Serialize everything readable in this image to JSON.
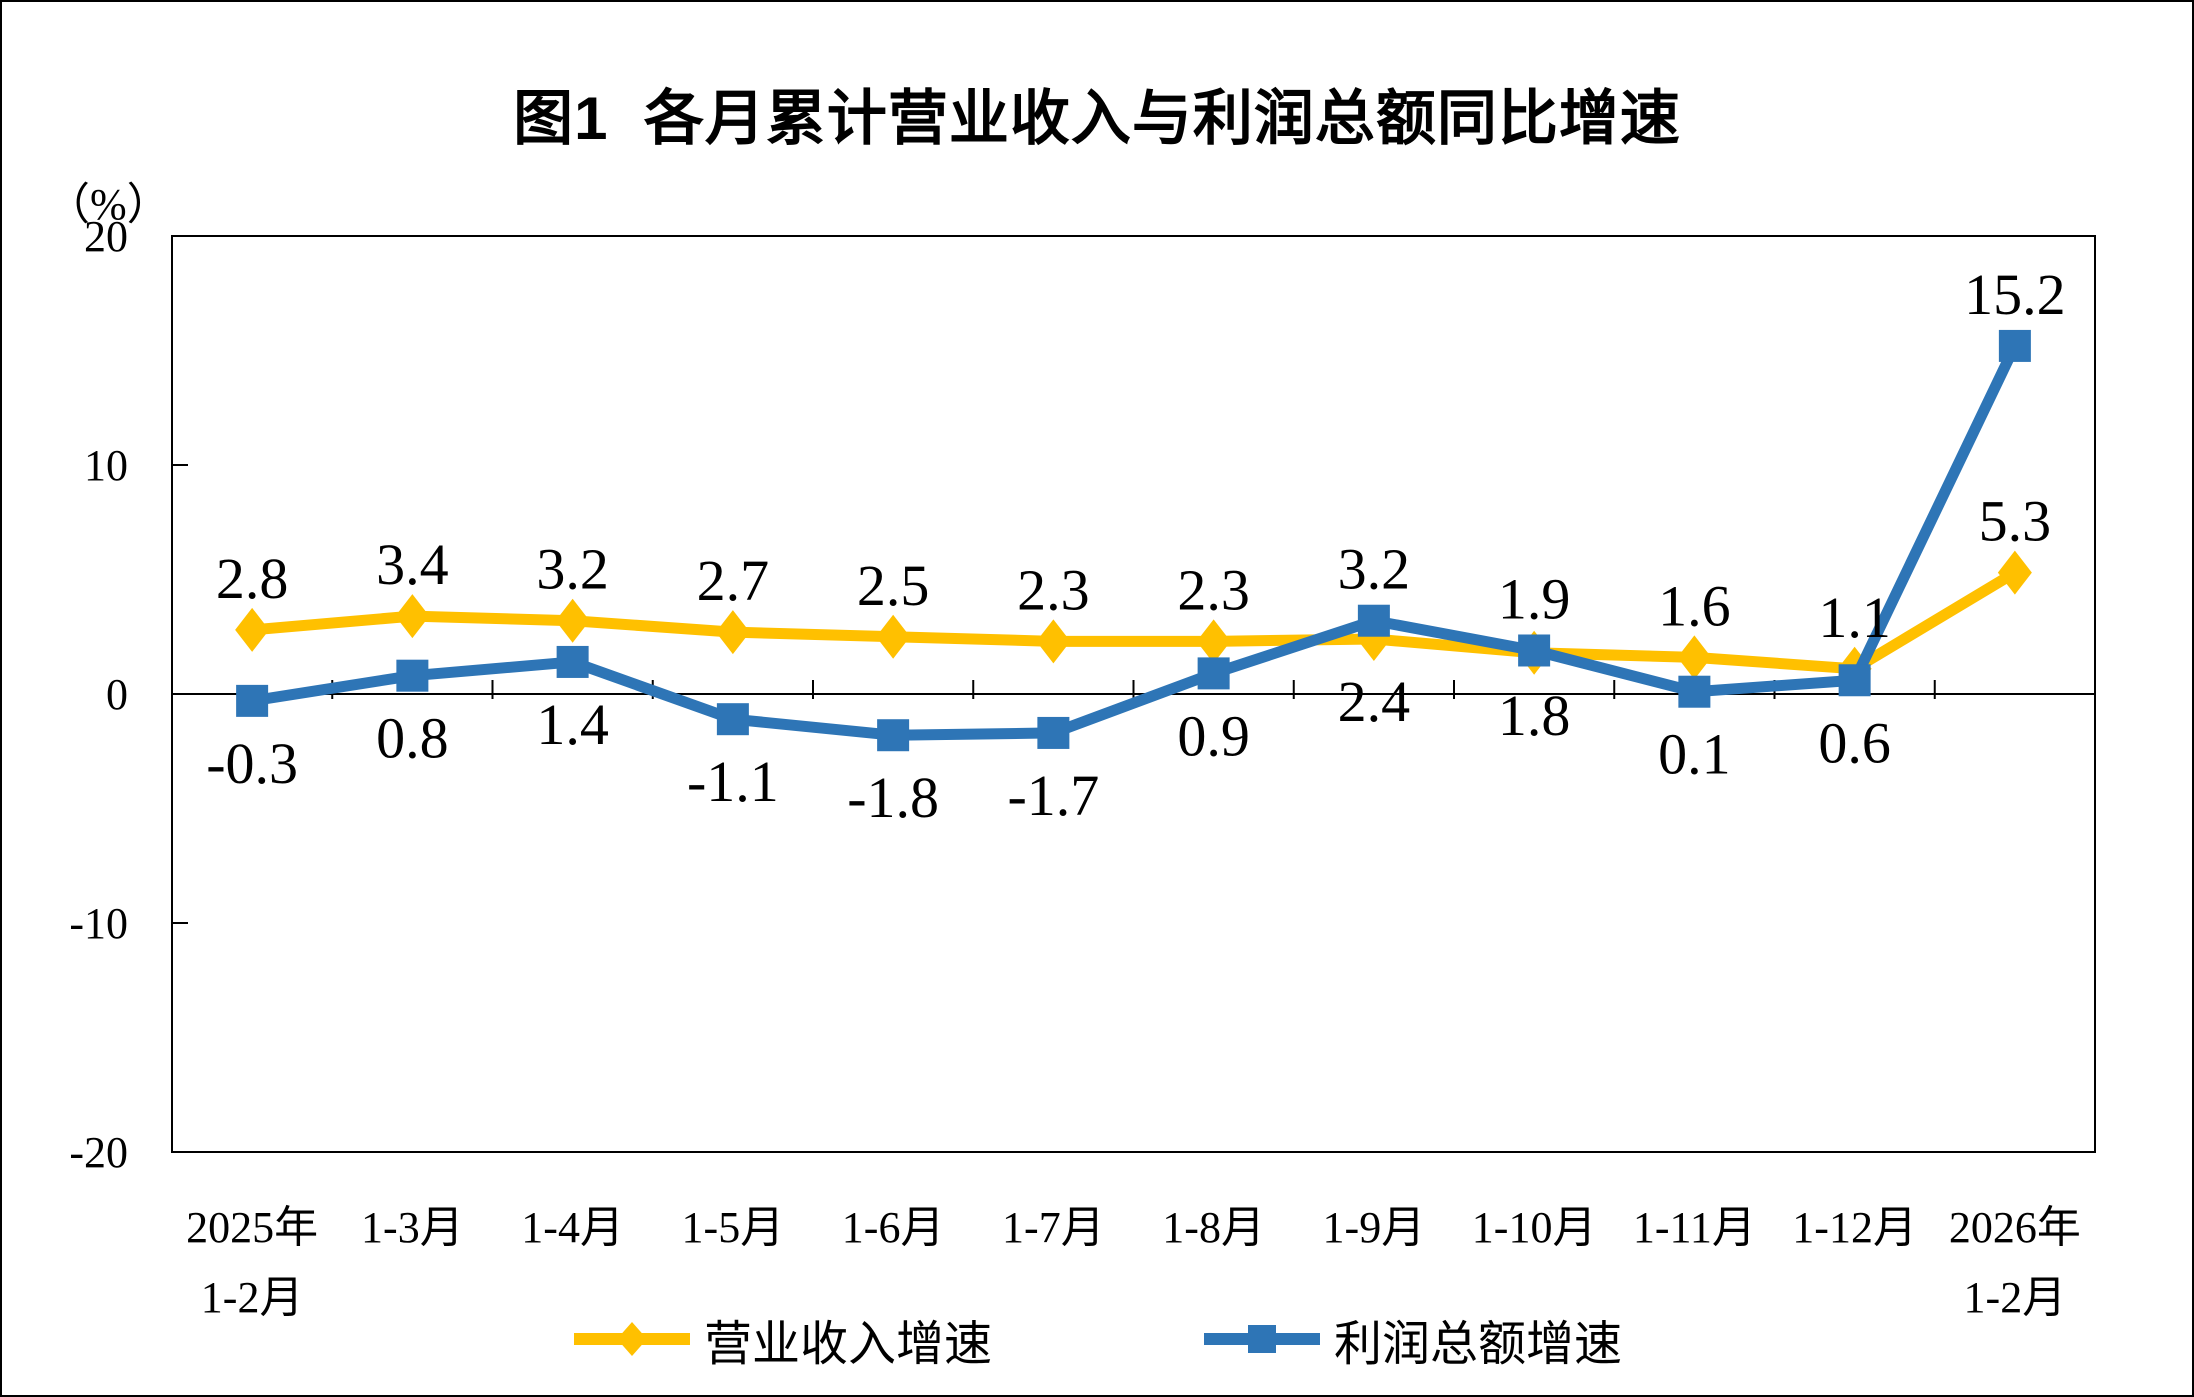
{
  "chart_data": {
    "type": "line",
    "title": "图1  各月累计营业收入与利润总额同比增速",
    "unit_label": "（%）",
    "ylim": [
      -20,
      20
    ],
    "yticks": [
      20,
      10,
      0,
      -10,
      -20
    ],
    "grid": false,
    "legend_position": "bottom",
    "axis_color": "#000000",
    "categories": [
      "2025年\n1-2月",
      "1-3月",
      "1-4月",
      "1-5月",
      "1-6月",
      "1-7月",
      "1-8月",
      "1-9月",
      "1-10月",
      "1-11月",
      "1-12月",
      "2026年\n1-2月"
    ],
    "series": [
      {
        "name": "营业收入增速",
        "color": "#FFC000",
        "marker": "diamond",
        "values": [
          2.8,
          3.4,
          3.2,
          2.7,
          2.5,
          2.3,
          2.3,
          2.4,
          1.8,
          1.6,
          1.1,
          5.3
        ],
        "label_side": [
          "above",
          "above",
          "above",
          "above",
          "above",
          "above",
          "above",
          "below",
          "below",
          "above",
          "above",
          "above"
        ]
      },
      {
        "name": "利润总额增速",
        "color": "#2E75B6",
        "marker": "square",
        "values": [
          -0.3,
          0.8,
          1.4,
          -1.1,
          -1.8,
          -1.7,
          0.9,
          3.2,
          1.9,
          0.1,
          0.6,
          15.2
        ],
        "label_side": [
          "below",
          "below",
          "below",
          "below",
          "below",
          "below",
          "below",
          "above",
          "above",
          "below",
          "below",
          "above"
        ]
      }
    ]
  }
}
